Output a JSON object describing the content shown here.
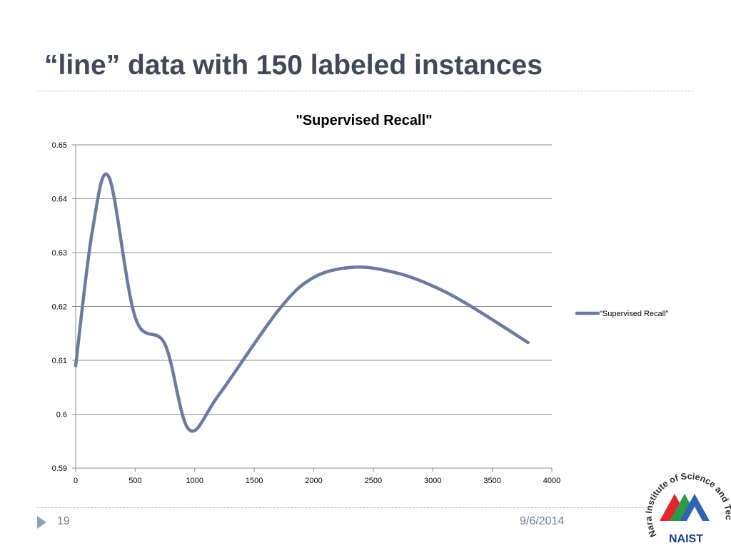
{
  "slide": {
    "title": "“line” data with 150 labeled instances",
    "page_number": "19",
    "date": "9/6/2014"
  },
  "logo": {
    "arc_text": "Nara Institute of Science and Technology",
    "wordmark": "NAIST"
  },
  "colors": {
    "title": "#404859",
    "series": "#6c7a9f",
    "grid": "#8c8c8c",
    "footer": "#6f7f8e",
    "logo_red": "#e0262c",
    "logo_green": "#2f9a4c",
    "logo_blue": "#2e64b4"
  },
  "chart_data": {
    "type": "line",
    "title": "\"Supervised Recall\"",
    "xlabel": "",
    "ylabel": "",
    "xlim": [
      0,
      4000
    ],
    "ylim": [
      0.59,
      0.65
    ],
    "x_ticks": [
      "0",
      "500",
      "1000",
      "1500",
      "2000",
      "2500",
      "3000",
      "3500",
      "4000"
    ],
    "y_ticks": [
      "0.59",
      "0.6",
      "0.61",
      "0.62",
      "0.63",
      "0.64",
      "0.65"
    ],
    "grid": "horizontal",
    "legend": "right",
    "smooth": true,
    "series": [
      {
        "name": "\"Supervised Recall\"",
        "x": [
          0,
          140,
          280,
          500,
          750,
          950,
          1200,
          1700,
          2000,
          2350,
          2700,
          3000,
          3300,
          3800
        ],
        "y": [
          0.609,
          0.634,
          0.644,
          0.618,
          0.613,
          0.5972,
          0.6035,
          0.6192,
          0.6254,
          0.6273,
          0.6262,
          0.6238,
          0.6203,
          0.6133
        ]
      }
    ]
  }
}
